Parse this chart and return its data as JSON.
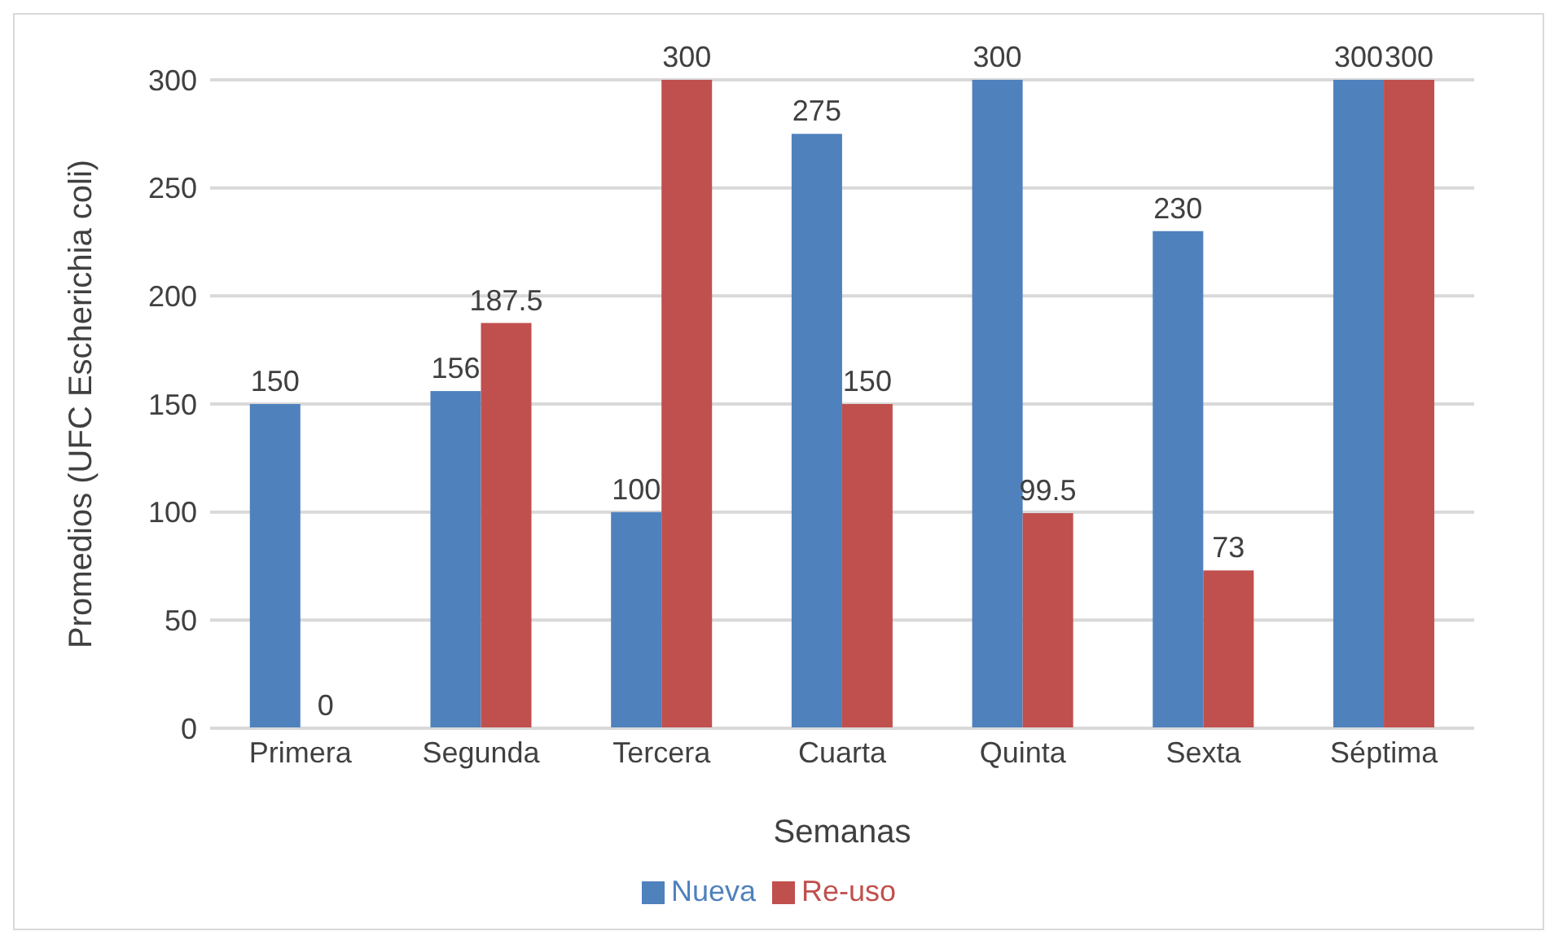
{
  "chart_data": {
    "type": "bar",
    "xlabel": "Semanas",
    "ylabel": "Promedios (UFC Escherichia coli)",
    "categories": [
      "Primera",
      "Segunda",
      "Tercera",
      "Cuarta",
      "Quinta",
      "Sexta",
      "Séptima"
    ],
    "series": [
      {
        "name": "Nueva",
        "color": "#4f81bd",
        "values": [
          150,
          156,
          100,
          275,
          300,
          230,
          300
        ]
      },
      {
        "name": "Re-uso",
        "color": "#c0504d",
        "values": [
          0,
          187.5,
          300,
          150,
          99.5,
          73,
          300
        ]
      }
    ],
    "ylim": [
      0,
      300
    ],
    "yticks": [
      0,
      50,
      100,
      150,
      200,
      250,
      300
    ],
    "grid": "y",
    "legend": "bottom",
    "data_labels": true
  }
}
